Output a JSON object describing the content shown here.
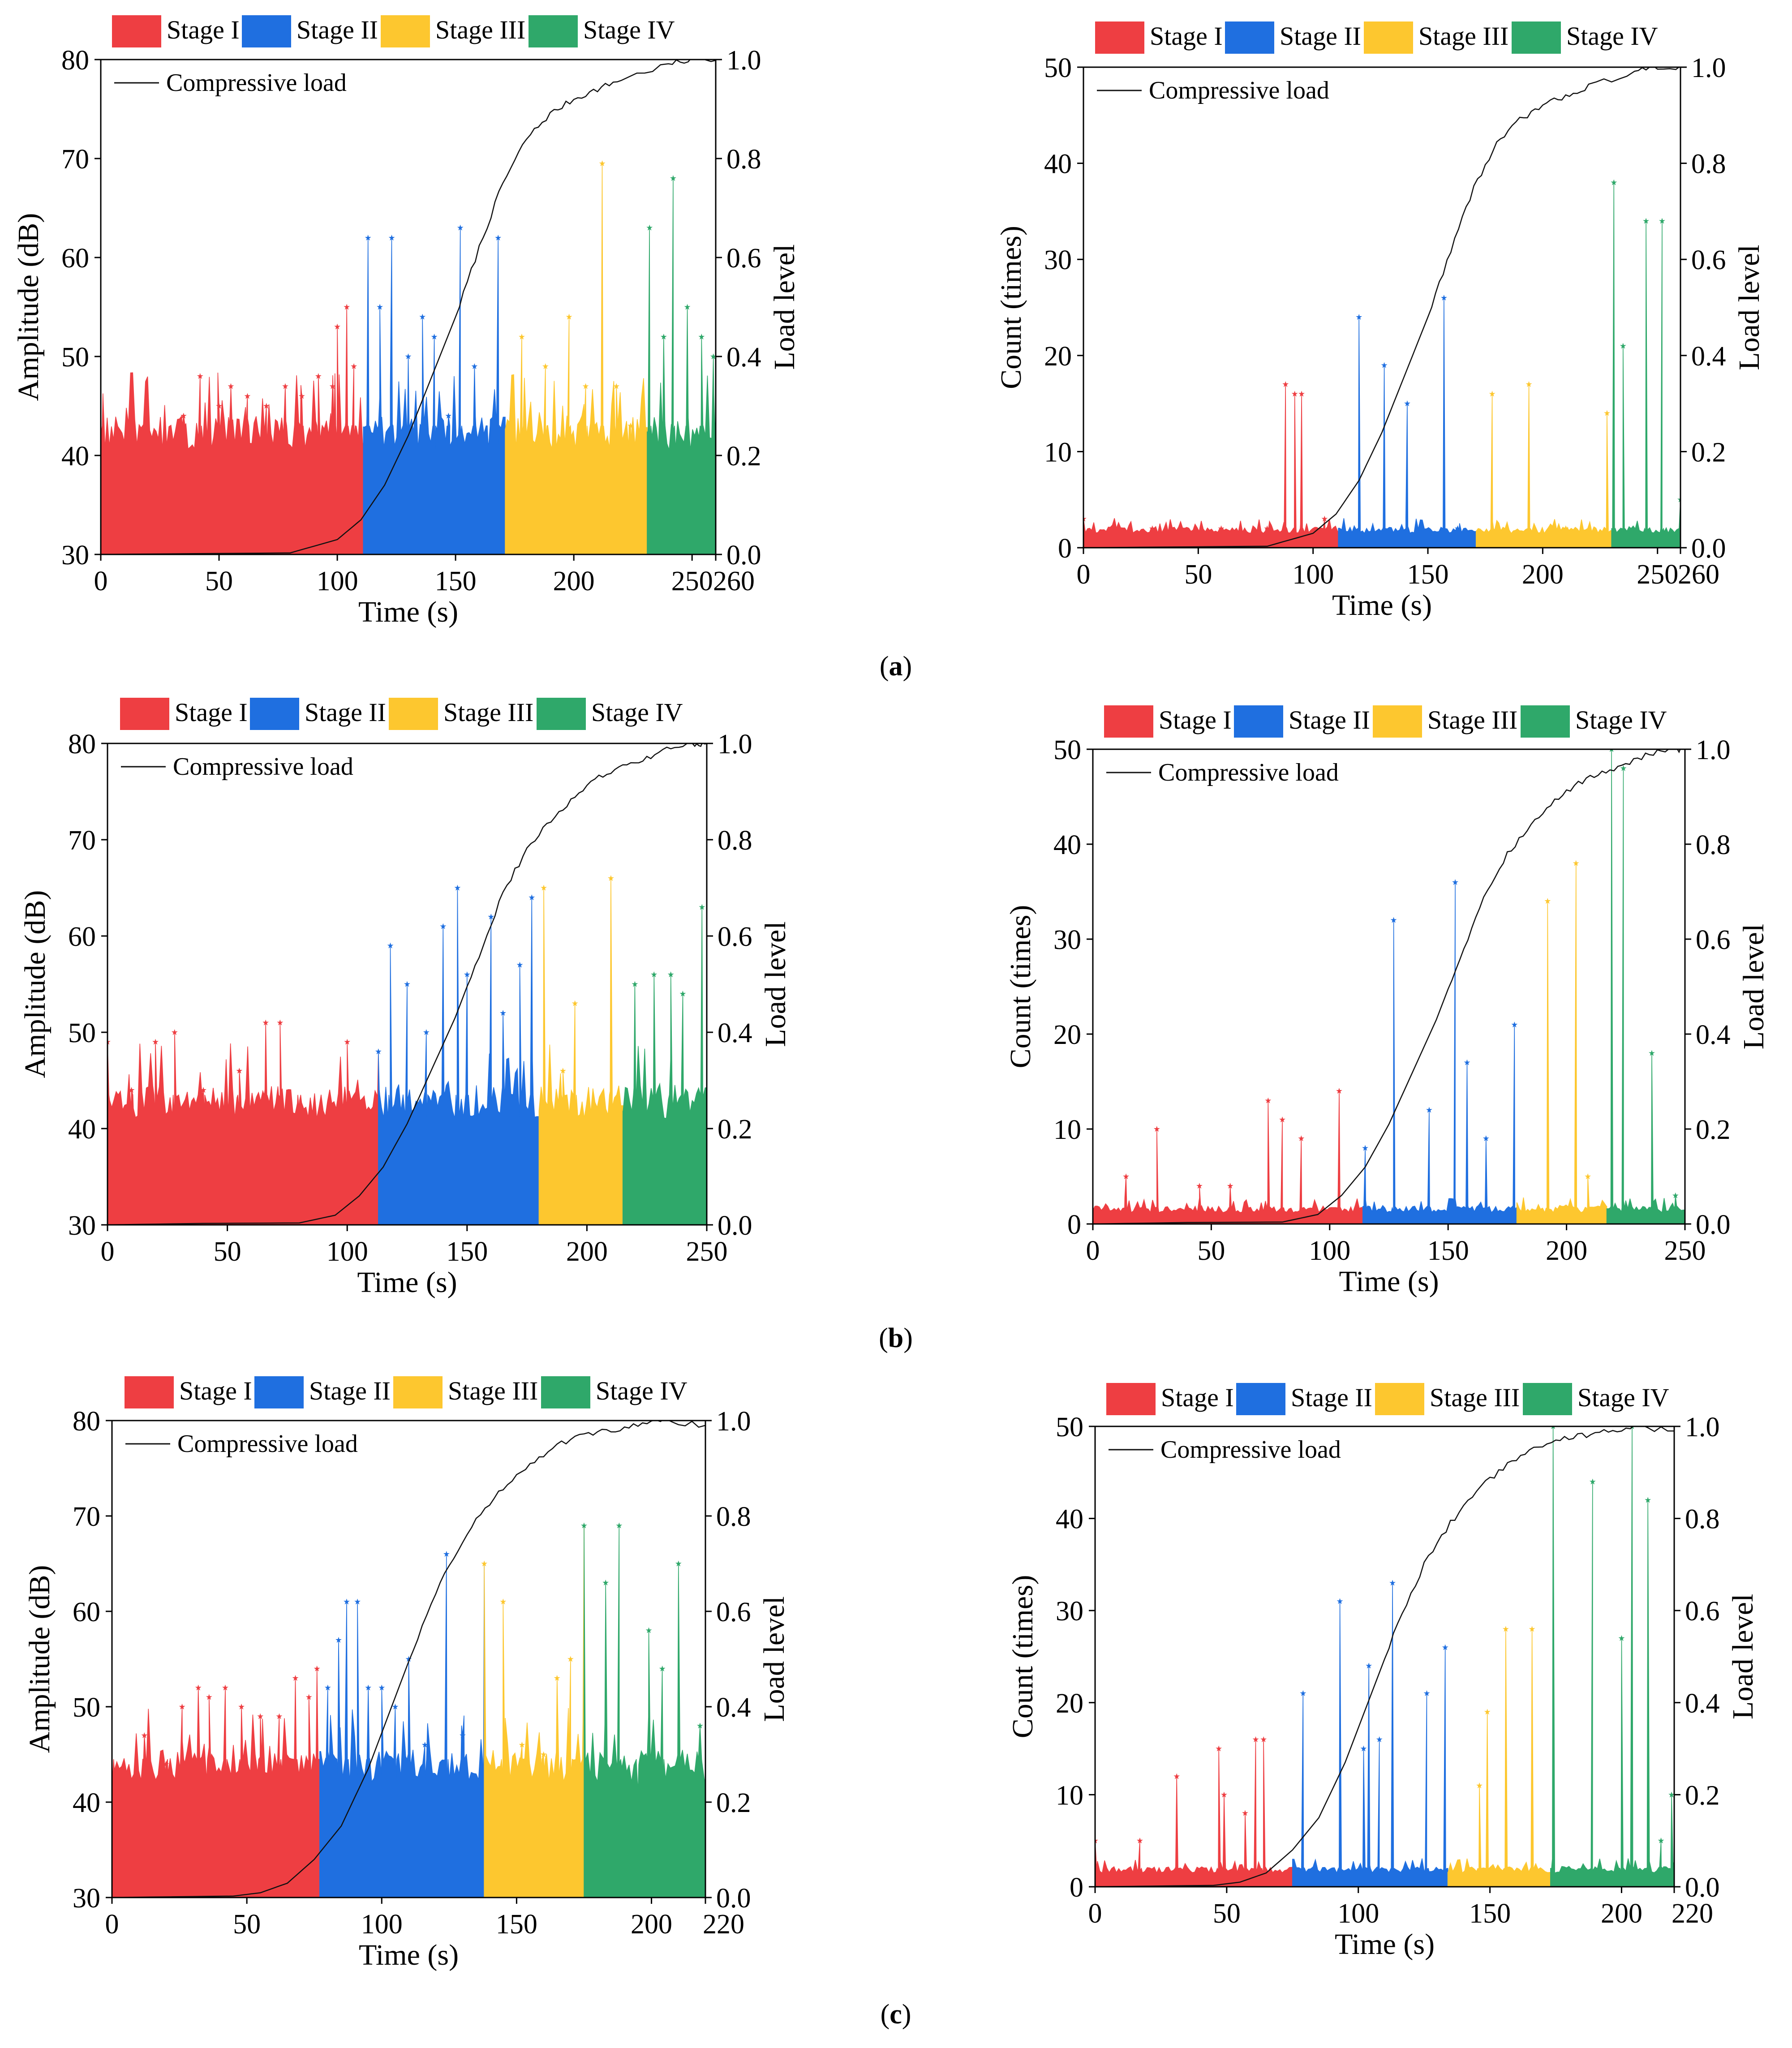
{
  "legend": {
    "stages": [
      {
        "label": "Stage I",
        "color": "#ee3e42"
      },
      {
        "label": "Stage II",
        "color": "#1f6fe0"
      },
      {
        "label": "Stage III",
        "color": "#fdc72f"
      },
      {
        "label": "Stage IV",
        "color": "#2fa86a"
      }
    ],
    "line_label": "Compressive load"
  },
  "panel_labels": [
    {
      "open": "(",
      "letter": "a",
      "close": ")"
    },
    {
      "open": "(",
      "letter": "b",
      "close": ")"
    },
    {
      "open": "(",
      "letter": "c",
      "close": ")"
    }
  ],
  "chart_data": [
    {
      "id": "a-amp",
      "type": "area",
      "panel": "a",
      "xlabel": "Time (s)",
      "ylabel": "Amplitude (dB)",
      "y2label": "Load level",
      "xlim": [
        0,
        260
      ],
      "ylim": [
        30,
        80
      ],
      "y2lim": [
        0,
        1.0
      ],
      "xticks": [
        0,
        50,
        100,
        150,
        200,
        250,
        260
      ],
      "yticks": [
        30,
        40,
        50,
        60,
        70,
        80
      ],
      "y2ticks": [
        0.0,
        0.2,
        0.4,
        0.6,
        0.8,
        1.0
      ],
      "stage_bounds": [
        0,
        111,
        171,
        231,
        266
      ],
      "baseline": 40.5,
      "noise": 5,
      "peaks": [
        [
          0,
          42
        ],
        [
          35,
          44
        ],
        [
          42,
          48
        ],
        [
          50,
          45
        ],
        [
          55,
          47
        ],
        [
          62,
          46
        ],
        [
          70,
          45
        ],
        [
          78,
          47
        ],
        [
          85,
          46
        ],
        [
          92,
          48
        ],
        [
          98,
          47
        ],
        [
          100,
          53
        ],
        [
          104,
          55
        ],
        [
          107,
          49
        ],
        [
          113,
          62
        ],
        [
          118,
          55
        ],
        [
          123,
          62
        ],
        [
          130,
          50
        ],
        [
          136,
          54
        ],
        [
          141,
          52
        ],
        [
          147,
          44
        ],
        [
          152,
          63
        ],
        [
          158,
          49
        ],
        [
          164,
          41
        ],
        [
          168,
          62
        ],
        [
          178,
          52
        ],
        [
          188,
          49
        ],
        [
          198,
          54
        ],
        [
          205,
          47
        ],
        [
          212,
          69.5
        ],
        [
          218,
          47
        ],
        [
          224,
          43
        ],
        [
          232,
          63
        ],
        [
          238,
          52
        ],
        [
          242,
          68
        ],
        [
          248,
          55
        ],
        [
          254,
          52
        ],
        [
          259,
          50
        ],
        [
          264,
          49
        ]
      ],
      "load": [
        [
          0,
          0
        ],
        [
          80,
          0.003
        ],
        [
          100,
          0.03
        ],
        [
          110,
          0.07
        ],
        [
          120,
          0.14
        ],
        [
          130,
          0.24
        ],
        [
          140,
          0.36
        ],
        [
          150,
          0.48
        ],
        [
          160,
          0.62
        ],
        [
          170,
          0.75
        ],
        [
          180,
          0.84
        ],
        [
          190,
          0.89
        ],
        [
          200,
          0.92
        ],
        [
          210,
          0.94
        ],
        [
          220,
          0.96
        ],
        [
          240,
          0.99
        ],
        [
          250,
          1.0
        ],
        [
          266,
          1.0
        ]
      ]
    },
    {
      "id": "a-count",
      "type": "area",
      "panel": "a",
      "xlabel": "Time (s)",
      "ylabel": "Count (times)",
      "y2label": "Load level",
      "xlim": [
        0,
        260
      ],
      "ylim": [
        0,
        50
      ],
      "y2lim": [
        0,
        1.0
      ],
      "xticks": [
        0,
        50,
        100,
        150,
        200,
        250,
        260
      ],
      "yticks": [
        0,
        10,
        20,
        30,
        40,
        50
      ],
      "y2ticks": [
        0.0,
        0.2,
        0.4,
        0.6,
        0.8,
        1.0
      ],
      "stage_bounds": [
        0,
        111,
        171,
        230,
        266
      ],
      "baseline": 1.5,
      "noise": 1,
      "peaks": [
        [
          0,
          3
        ],
        [
          30,
          2
        ],
        [
          60,
          2
        ],
        [
          80,
          2
        ],
        [
          88,
          17
        ],
        [
          92,
          16
        ],
        [
          95,
          16
        ],
        [
          105,
          3
        ],
        [
          120,
          24
        ],
        [
          131,
          19
        ],
        [
          141,
          15
        ],
        [
          157,
          26
        ],
        [
          163,
          2
        ],
        [
          178,
          16
        ],
        [
          194,
          17
        ],
        [
          210,
          2
        ],
        [
          228,
          14
        ],
        [
          231,
          38
        ],
        [
          235,
          21
        ],
        [
          245,
          34
        ],
        [
          252,
          34
        ],
        [
          260,
          5
        ]
      ],
      "load": [
        [
          0,
          0
        ],
        [
          80,
          0.003
        ],
        [
          100,
          0.03
        ],
        [
          110,
          0.07
        ],
        [
          120,
          0.14
        ],
        [
          130,
          0.24
        ],
        [
          140,
          0.36
        ],
        [
          150,
          0.48
        ],
        [
          160,
          0.62
        ],
        [
          170,
          0.75
        ],
        [
          180,
          0.84
        ],
        [
          190,
          0.89
        ],
        [
          200,
          0.92
        ],
        [
          210,
          0.94
        ],
        [
          220,
          0.96
        ],
        [
          240,
          0.99
        ],
        [
          250,
          1.0
        ],
        [
          266,
          1.0
        ]
      ]
    },
    {
      "id": "b-amp",
      "type": "area",
      "panel": "b",
      "xlabel": "Time (s)",
      "ylabel": "Amplitude (dB)",
      "y2label": "Load level",
      "xlim": [
        0,
        250
      ],
      "ylim": [
        30,
        80
      ],
      "y2lim": [
        0,
        1.0
      ],
      "xticks": [
        0,
        50,
        100,
        150,
        200,
        250
      ],
      "yticks": [
        30,
        40,
        50,
        60,
        70,
        80
      ],
      "y2ticks": [
        0.0,
        0.2,
        0.4,
        0.6,
        0.8,
        1.0
      ],
      "stage_bounds": [
        0,
        113,
        180,
        215,
        250
      ],
      "baseline": 41,
      "noise": 5,
      "peaks": [
        [
          0,
          49
        ],
        [
          10,
          44
        ],
        [
          20,
          49
        ],
        [
          28,
          50
        ],
        [
          40,
          44
        ],
        [
          55,
          46
        ],
        [
          66,
          51
        ],
        [
          72,
          51
        ],
        [
          80,
          42
        ],
        [
          100,
          49
        ],
        [
          113,
          48
        ],
        [
          118,
          59
        ],
        [
          125,
          55
        ],
        [
          133,
          50
        ],
        [
          140,
          61
        ],
        [
          146,
          65
        ],
        [
          150,
          56
        ],
        [
          160,
          62
        ],
        [
          165,
          52
        ],
        [
          172,
          57
        ],
        [
          177,
          64
        ],
        [
          182,
          65
        ],
        [
          190,
          46
        ],
        [
          195,
          53
        ],
        [
          210,
          66
        ],
        [
          220,
          55
        ],
        [
          228,
          56
        ],
        [
          235,
          56
        ],
        [
          240,
          54
        ],
        [
          248,
          63
        ]
      ],
      "load": [
        [
          0,
          0
        ],
        [
          40,
          0.003
        ],
        [
          80,
          0.004
        ],
        [
          95,
          0.02
        ],
        [
          105,
          0.06
        ],
        [
          115,
          0.12
        ],
        [
          125,
          0.21
        ],
        [
          135,
          0.32
        ],
        [
          145,
          0.43
        ],
        [
          155,
          0.56
        ],
        [
          165,
          0.69
        ],
        [
          175,
          0.78
        ],
        [
          185,
          0.84
        ],
        [
          195,
          0.89
        ],
        [
          205,
          0.93
        ],
        [
          215,
          0.95
        ],
        [
          225,
          0.97
        ],
        [
          235,
          0.99
        ],
        [
          245,
          1.0
        ],
        [
          250,
          1.0
        ]
      ]
    },
    {
      "id": "b-count",
      "type": "area",
      "panel": "b",
      "xlabel": "Time (s)",
      "ylabel": "Count (times)",
      "y2label": "Load level",
      "xlim": [
        0,
        250
      ],
      "ylim": [
        0,
        50
      ],
      "y2lim": [
        0,
        1.0
      ],
      "xticks": [
        0,
        50,
        100,
        150,
        200,
        250
      ],
      "yticks": [
        0,
        10,
        20,
        30,
        40,
        50
      ],
      "y2ticks": [
        0.0,
        0.2,
        0.4,
        0.6,
        0.8,
        1.0
      ],
      "stage_bounds": [
        0,
        114,
        179,
        217,
        250
      ],
      "baseline": 1.2,
      "noise": 1,
      "peaks": [
        [
          14,
          5
        ],
        [
          27,
          10
        ],
        [
          45,
          4
        ],
        [
          58,
          4
        ],
        [
          74,
          13
        ],
        [
          80,
          11
        ],
        [
          88,
          9
        ],
        [
          104,
          14
        ],
        [
          115,
          8
        ],
        [
          127,
          32
        ],
        [
          142,
          12
        ],
        [
          153,
          36
        ],
        [
          158,
          17
        ],
        [
          166,
          9
        ],
        [
          178,
          21
        ],
        [
          192,
          34
        ],
        [
          204,
          38
        ],
        [
          209,
          5
        ],
        [
          219,
          50
        ],
        [
          224,
          48
        ],
        [
          236,
          18
        ],
        [
          246,
          3
        ]
      ],
      "load": [
        [
          0,
          0
        ],
        [
          40,
          0.003
        ],
        [
          80,
          0.004
        ],
        [
          95,
          0.02
        ],
        [
          105,
          0.06
        ],
        [
          115,
          0.12
        ],
        [
          125,
          0.21
        ],
        [
          135,
          0.32
        ],
        [
          145,
          0.43
        ],
        [
          155,
          0.56
        ],
        [
          165,
          0.69
        ],
        [
          175,
          0.78
        ],
        [
          185,
          0.84
        ],
        [
          195,
          0.89
        ],
        [
          205,
          0.93
        ],
        [
          215,
          0.95
        ],
        [
          225,
          0.97
        ],
        [
          235,
          0.99
        ],
        [
          245,
          1.0
        ],
        [
          250,
          1.0
        ]
      ]
    },
    {
      "id": "c-amp",
      "type": "area",
      "panel": "c",
      "xlabel": "Time (s)",
      "ylabel": "Amplitude (dB)",
      "y2label": "Load level",
      "xlim": [
        0,
        220
      ],
      "ylim": [
        30,
        80
      ],
      "y2lim": [
        0,
        1.0
      ],
      "xticks": [
        0,
        50,
        100,
        150,
        200,
        220
      ],
      "yticks": [
        30,
        40,
        50,
        60,
        70,
        80
      ],
      "y2ticks": [
        0.0,
        0.2,
        0.4,
        0.6,
        0.8,
        1.0
      ],
      "stage_bounds": [
        0,
        77,
        138,
        175,
        220
      ],
      "baseline": 42,
      "noise": 5,
      "peaks": [
        [
          0,
          41
        ],
        [
          12,
          47
        ],
        [
          20,
          44
        ],
        [
          26,
          50
        ],
        [
          32,
          52
        ],
        [
          36,
          51
        ],
        [
          42,
          52
        ],
        [
          48,
          50
        ],
        [
          55,
          49
        ],
        [
          62,
          49
        ],
        [
          68,
          53
        ],
        [
          73,
          51
        ],
        [
          76,
          54
        ],
        [
          80,
          52
        ],
        [
          84,
          57
        ],
        [
          87,
          61
        ],
        [
          91,
          61
        ],
        [
          95,
          52
        ],
        [
          100,
          52
        ],
        [
          105,
          50
        ],
        [
          110,
          55
        ],
        [
          116,
          46
        ],
        [
          124,
          66
        ],
        [
          130,
          47
        ],
        [
          138,
          65
        ],
        [
          145,
          61
        ],
        [
          152,
          46
        ],
        [
          160,
          45
        ],
        [
          165,
          53
        ],
        [
          170,
          55
        ],
        [
          175,
          69
        ],
        [
          183,
          63
        ],
        [
          188,
          69
        ],
        [
          195,
          41
        ],
        [
          199,
          58
        ],
        [
          204,
          54
        ],
        [
          210,
          65
        ],
        [
          218,
          48
        ]
      ],
      "load": [
        [
          0,
          0
        ],
        [
          45,
          0.003
        ],
        [
          55,
          0.01
        ],
        [
          65,
          0.03
        ],
        [
          75,
          0.08
        ],
        [
          85,
          0.15
        ],
        [
          95,
          0.27
        ],
        [
          105,
          0.42
        ],
        [
          115,
          0.57
        ],
        [
          125,
          0.7
        ],
        [
          135,
          0.79
        ],
        [
          145,
          0.86
        ],
        [
          155,
          0.91
        ],
        [
          165,
          0.95
        ],
        [
          175,
          0.97
        ],
        [
          185,
          0.98
        ],
        [
          195,
          0.99
        ],
        [
          205,
          1.0
        ],
        [
          220,
          0.99
        ]
      ]
    },
    {
      "id": "c-count",
      "type": "area",
      "panel": "c",
      "xlabel": "Time (s)",
      "ylabel": "Count (times)",
      "y2label": "Load level",
      "xlim": [
        0,
        220
      ],
      "ylim": [
        0,
        50
      ],
      "y2lim": [
        0,
        1.0
      ],
      "xticks": [
        0,
        50,
        100,
        150,
        200,
        220
      ],
      "yticks": [
        0,
        10,
        20,
        30,
        40,
        50
      ],
      "y2ticks": [
        0.0,
        0.2,
        0.4,
        0.6,
        0.8,
        1.0
      ],
      "stage_bounds": [
        0,
        75,
        134,
        173,
        220
      ],
      "baseline": 1.5,
      "noise": 1,
      "peaks": [
        [
          0,
          5
        ],
        [
          17,
          5
        ],
        [
          31,
          12
        ],
        [
          47,
          15
        ],
        [
          49,
          10
        ],
        [
          57,
          8
        ],
        [
          61,
          16
        ],
        [
          64,
          16
        ],
        [
          79,
          21
        ],
        [
          93,
          31
        ],
        [
          102,
          15
        ],
        [
          104,
          24
        ],
        [
          108,
          16
        ],
        [
          113,
          33
        ],
        [
          126,
          21
        ],
        [
          133,
          26
        ],
        [
          146,
          11
        ],
        [
          149,
          19
        ],
        [
          156,
          28
        ],
        [
          166,
          28
        ],
        [
          174,
          50
        ],
        [
          189,
          44
        ],
        [
          200,
          27
        ],
        [
          204,
          50
        ],
        [
          210,
          42
        ],
        [
          215,
          5
        ],
        [
          219,
          10
        ]
      ],
      "load": [
        [
          0,
          0
        ],
        [
          45,
          0.003
        ],
        [
          55,
          0.01
        ],
        [
          65,
          0.03
        ],
        [
          75,
          0.08
        ],
        [
          85,
          0.15
        ],
        [
          95,
          0.27
        ],
        [
          105,
          0.42
        ],
        [
          115,
          0.57
        ],
        [
          125,
          0.7
        ],
        [
          135,
          0.79
        ],
        [
          145,
          0.86
        ],
        [
          155,
          0.91
        ],
        [
          165,
          0.95
        ],
        [
          175,
          0.97
        ],
        [
          185,
          0.98
        ],
        [
          195,
          0.99
        ],
        [
          205,
          1.0
        ],
        [
          220,
          0.99
        ]
      ]
    }
  ]
}
